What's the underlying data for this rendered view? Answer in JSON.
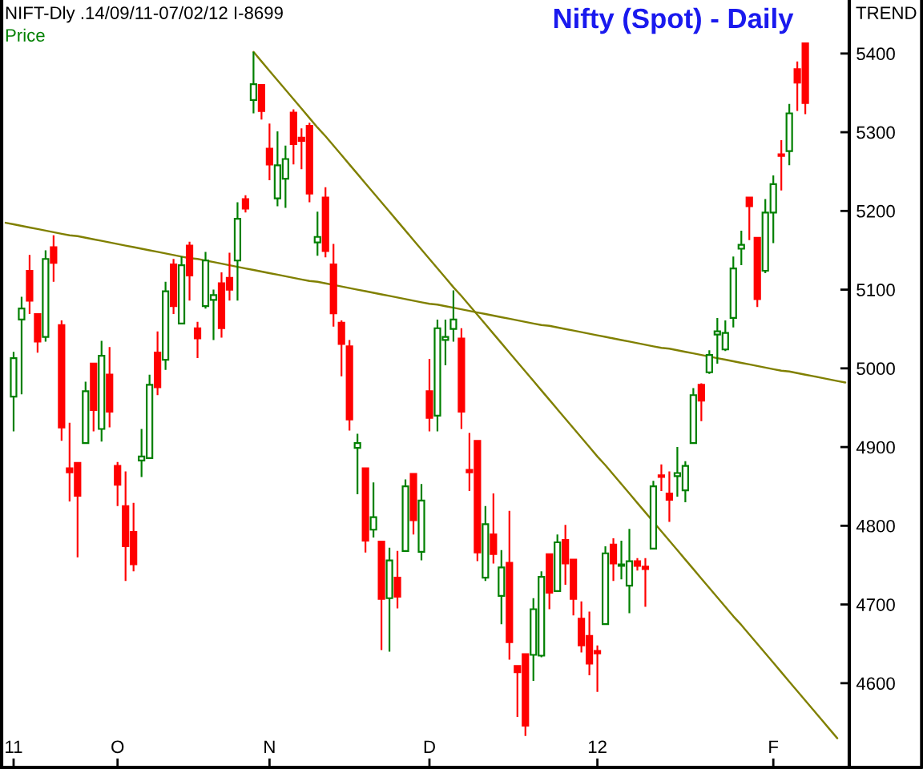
{
  "chart_data": {
    "type": "candlestick",
    "title": "Nifty (Spot) - Daily",
    "subtitle": "NIFT-Dly .14/09/11-07/02/12 I-8699",
    "ylabel": "Price",
    "annotations": [
      "TREND"
    ],
    "categories": [
      null,
      "11",
      null,
      null,
      null,
      null,
      null,
      null,
      null,
      null,
      null,
      null,
      null,
      null,
      "O",
      null,
      null,
      null,
      null,
      null,
      null,
      null,
      null,
      null,
      null,
      null,
      null,
      null,
      null,
      null,
      null,
      null,
      null,
      "N",
      null,
      null,
      null,
      null,
      null,
      null,
      null,
      null,
      null,
      null,
      null,
      null,
      null,
      null,
      null,
      null,
      null,
      null,
      null,
      "D",
      null,
      null,
      null,
      null,
      null,
      null,
      null,
      null,
      null,
      null,
      null,
      null,
      null,
      null,
      null,
      null,
      null,
      null,
      null,
      null,
      "12",
      null,
      null,
      null,
      null,
      null,
      null,
      null,
      null,
      null,
      null,
      null,
      null,
      null,
      null,
      null,
      null,
      null,
      null,
      null,
      null,
      null,
      "F",
      null,
      null,
      null,
      null,
      null,
      null,
      null,
      null,
      null
    ],
    "ohlc": [
      null,
      [
        4964,
        5021,
        4920,
        5013
      ],
      [
        5062,
        5091,
        4967,
        5076
      ],
      [
        5124,
        5144,
        5069,
        5086
      ],
      [
        5069,
        5069,
        5020,
        5034
      ],
      [
        5040,
        5150,
        5034,
        5139
      ],
      [
        5154,
        5169,
        5110,
        5134
      ],
      [
        5055,
        5061,
        4908,
        4925
      ],
      [
        4873,
        4931,
        4831,
        4868
      ],
      [
        4880,
        4880,
        4760,
        4838
      ],
      [
        4905,
        4983,
        4905,
        4971
      ],
      [
        5006,
        5006,
        4920,
        4947
      ],
      [
        4923,
        5035,
        4907,
        5016
      ],
      [
        4992,
        5027,
        4925,
        4945
      ],
      [
        4876,
        4881,
        4825,
        4852
      ],
      [
        4825,
        4869,
        4730,
        4774
      ],
      [
        4792,
        4829,
        4742,
        4751
      ],
      [
        4883,
        4923,
        4862,
        4888
      ],
      [
        4886,
        4992,
        4886,
        4979
      ],
      [
        5020,
        5047,
        4966,
        4976
      ],
      [
        5011,
        5110,
        4998,
        5098
      ],
      [
        5132,
        5139,
        5069,
        5079
      ],
      [
        5057,
        5142,
        5057,
        5131
      ],
      [
        5156,
        5161,
        5086,
        5118
      ],
      [
        5051,
        5059,
        5013,
        5038
      ],
      [
        5079,
        5148,
        5076,
        5137
      ],
      [
        5087,
        5100,
        5036,
        5093
      ],
      [
        5108,
        5122,
        5039,
        5051
      ],
      [
        5115,
        5147,
        5086,
        5100
      ],
      [
        5137,
        5211,
        5086,
        5190
      ],
      [
        5215,
        5220,
        5198,
        5203
      ],
      [
        5341,
        5402,
        5324,
        5361
      ],
      [
        5360,
        5360,
        5316,
        5327
      ],
      [
        5279,
        5311,
        5239,
        5259
      ],
      [
        5216,
        5301,
        5206,
        5258
      ],
      [
        5241,
        5283,
        5204,
        5266
      ],
      [
        5325,
        5329,
        5259,
        5285
      ],
      [
        5293,
        5305,
        5253,
        5289
      ],
      [
        5308,
        5312,
        5211,
        5222
      ],
      [
        5160,
        5199,
        5143,
        5167
      ],
      [
        5217,
        5230,
        5141,
        5149
      ],
      [
        5132,
        5158,
        5053,
        5070
      ],
      [
        5058,
        5061,
        4990,
        5031
      ],
      [
        5028,
        5036,
        4921,
        4935
      ],
      [
        4899,
        4917,
        4840,
        4905
      ],
      [
        4873,
        4873,
        4766,
        4781
      ],
      [
        4795,
        4855,
        4785,
        4811
      ],
      [
        4780,
        4780,
        4642,
        4707
      ],
      [
        4708,
        4772,
        4640,
        4756
      ],
      [
        4734,
        4768,
        4695,
        4710
      ],
      [
        4768,
        4859,
        4768,
        4850
      ],
      [
        4866,
        4867,
        4789,
        4807
      ],
      [
        4767,
        4853,
        4756,
        4832
      ],
      [
        4971,
        5012,
        4920,
        4937
      ],
      [
        4940,
        5062,
        4920,
        5051
      ],
      [
        5036,
        5062,
        5004,
        5040
      ],
      [
        5050,
        5099,
        5034,
        5062
      ],
      [
        5038,
        5051,
        4923,
        4945
      ],
      [
        4871,
        4918,
        4844,
        4868
      ],
      [
        4908,
        4909,
        4755,
        4766
      ],
      [
        4734,
        4825,
        4730,
        4802
      ],
      [
        4789,
        4841,
        4752,
        4764
      ],
      [
        4711,
        4769,
        4675,
        4747
      ],
      [
        4753,
        4819,
        4630,
        4652
      ],
      [
        4622,
        4622,
        4557,
        4614
      ],
      [
        4637,
        4637,
        4533,
        4546
      ],
      [
        4636,
        4708,
        4603,
        4694
      ],
      [
        4635,
        4742,
        4633,
        4735
      ],
      [
        4764,
        4764,
        4694,
        4715
      ],
      [
        4717,
        4789,
        4717,
        4779
      ],
      [
        4782,
        4801,
        4725,
        4752
      ],
      [
        4757,
        4757,
        4686,
        4707
      ],
      [
        4682,
        4704,
        4639,
        4648
      ],
      [
        4660,
        4691,
        4610,
        4625
      ],
      [
        4641,
        4648,
        4589,
        4638
      ],
      [
        4675,
        4774,
        4674,
        4765
      ],
      [
        4776,
        4784,
        4730,
        4752
      ],
      [
        4749,
        4781,
        4732,
        4751
      ],
      [
        4724,
        4796,
        4689,
        4755
      ],
      [
        4755,
        4759,
        4743,
        4749
      ],
      [
        4748,
        4759,
        4697,
        4745
      ],
      [
        4771,
        4857,
        4771,
        4850
      ],
      [
        4864,
        4878,
        4844,
        4862
      ],
      [
        4841,
        4869,
        4805,
        4833
      ],
      [
        4863,
        4900,
        4837,
        4867
      ],
      [
        4845,
        4882,
        4830,
        4876
      ],
      [
        4905,
        4975,
        4905,
        4966
      ],
      [
        4979,
        4981,
        4933,
        4959
      ],
      [
        4995,
        5023,
        4993,
        5017
      ],
      [
        5043,
        5064,
        5006,
        5047
      ],
      [
        5024,
        5061,
        5022,
        5045
      ],
      [
        5064,
        5142,
        5052,
        5127
      ],
      [
        5152,
        5175,
        5131,
        5157
      ],
      [
        5217,
        5217,
        5163,
        5206
      ],
      [
        5166,
        5166,
        5078,
        5088
      ],
      [
        5124,
        5215,
        5121,
        5198
      ],
      [
        5198,
        5245,
        5159,
        5234
      ],
      [
        5272,
        5290,
        5226,
        5270
      ],
      [
        5276,
        5336,
        5258,
        5324
      ],
      [
        5380,
        5390,
        5327,
        5363
      ],
      [
        5413,
        5413,
        5323,
        5337
      ],
      null,
      null,
      null,
      null,
      null
    ],
    "colors": [
      null,
      "#008000",
      "#008000",
      "#ff0000",
      "#ff0000",
      "#008000",
      "#ff0000",
      "#ff0000",
      "#ff0000",
      "#ff0000",
      "#008000",
      "#ff0000",
      "#008000",
      "#ff0000",
      "#ff0000",
      "#ff0000",
      "#ff0000",
      "#008000",
      "#008000",
      "#ff0000",
      "#008000",
      "#ff0000",
      "#008000",
      "#ff0000",
      "#ff0000",
      "#008000",
      "#008000",
      "#ff0000",
      "#ff0000",
      "#008000",
      "#ff0000",
      "#008000",
      "#ff0000",
      "#ff0000",
      "#008000",
      "#008000",
      "#ff0000",
      "#ff0000",
      "#ff0000",
      "#008000",
      "#ff0000",
      "#ff0000",
      "#ff0000",
      "#ff0000",
      "#008000",
      "#ff0000",
      "#008000",
      "#ff0000",
      "#008000",
      "#ff0000",
      "#008000",
      "#ff0000",
      "#008000",
      "#ff0000",
      "#008000",
      "#008000",
      "#008000",
      "#ff0000",
      "#ff0000",
      "#ff0000",
      "#008000",
      "#ff0000",
      "#008000",
      "#ff0000",
      "#ff0000",
      "#ff0000",
      "#008000",
      "#008000",
      "#ff0000",
      "#008000",
      "#ff0000",
      "#ff0000",
      "#ff0000",
      "#ff0000",
      "#ff0000",
      "#008000",
      "#ff0000",
      "#008000",
      "#008000",
      "#ff0000",
      "#ff0000",
      "#008000",
      "#ff0000",
      "#ff0000",
      "#008000",
      "#008000",
      "#008000",
      "#ff0000",
      "#008000",
      "#008000",
      "#008000",
      "#008000",
      "#008000",
      "#ff0000",
      "#ff0000",
      "#008000",
      "#008000",
      "#ff0000",
      "#008000",
      "#ff0000",
      "#ff0000",
      null,
      null,
      null,
      null,
      null
    ],
    "series": [
      {
        "type": "line",
        "color": "#808000",
        "values": [
          5185,
          5183,
          5181,
          5179,
          5177,
          5175,
          5173,
          5171,
          5169,
          5168,
          5166,
          5164,
          5162,
          5160,
          5158,
          5156,
          5154,
          5152,
          5150,
          5148,
          5146,
          5144,
          5142,
          5140,
          5139,
          5137,
          5135,
          5133,
          5131,
          5129,
          5127,
          5125,
          5123,
          5121,
          5119,
          5117,
          5115,
          5113,
          5111,
          5110,
          5108,
          5106,
          5104,
          5102,
          5100,
          5098,
          5096,
          5094,
          5092,
          5090,
          5088,
          5086,
          5084,
          5082,
          5081,
          5079,
          5077,
          5075,
          5073,
          5071,
          5069,
          5067,
          5065,
          5063,
          5061,
          5059,
          5057,
          5055,
          5054,
          5052,
          5050,
          5048,
          5046,
          5044,
          5042,
          5040,
          5038,
          5036,
          5034,
          5032,
          5030,
          5028,
          5026,
          5025,
          5023,
          5021,
          5019,
          5017,
          5015,
          5013,
          5011,
          5009,
          5007,
          5005,
          5003,
          5001,
          4999,
          4997,
          4996,
          4994,
          4992,
          4990,
          4988,
          4986,
          4984,
          4982
        ]
      },
      {
        "type": "line",
        "color": "#808000",
        "values": [
          null,
          null,
          null,
          null,
          null,
          null,
          null,
          null,
          null,
          null,
          null,
          null,
          null,
          null,
          null,
          null,
          null,
          null,
          null,
          null,
          null,
          null,
          null,
          null,
          null,
          null,
          null,
          null,
          null,
          null,
          null,
          5402,
          5390,
          5378,
          5366,
          5354,
          5342,
          5330,
          5318,
          5306,
          5295,
          5283,
          5271,
          5259,
          5247,
          5235,
          5223,
          5211,
          5199,
          5187,
          5175,
          5163,
          5151,
          5139,
          5127,
          5115,
          5103,
          5092,
          5080,
          5068,
          5056,
          5044,
          5032,
          5020,
          5008,
          4996,
          4984,
          4972,
          4960,
          4948,
          4936,
          4924,
          4912,
          4900,
          4888,
          4877,
          4865,
          4853,
          4841,
          4829,
          4817,
          4805,
          4793,
          4781,
          4769,
          4757,
          4745,
          4733,
          4721,
          4709,
          4697,
          4685,
          4674,
          4662,
          4650,
          4638,
          4626,
          4614,
          4602,
          4590,
          4578,
          4566,
          4554,
          4542,
          4530,
          null
        ]
      }
    ],
    "ylim": [
      4493,
      5468
    ],
    "yticks": [
      4600,
      4700,
      4800,
      4900,
      5000,
      5100,
      5200,
      5300,
      5400
    ]
  }
}
